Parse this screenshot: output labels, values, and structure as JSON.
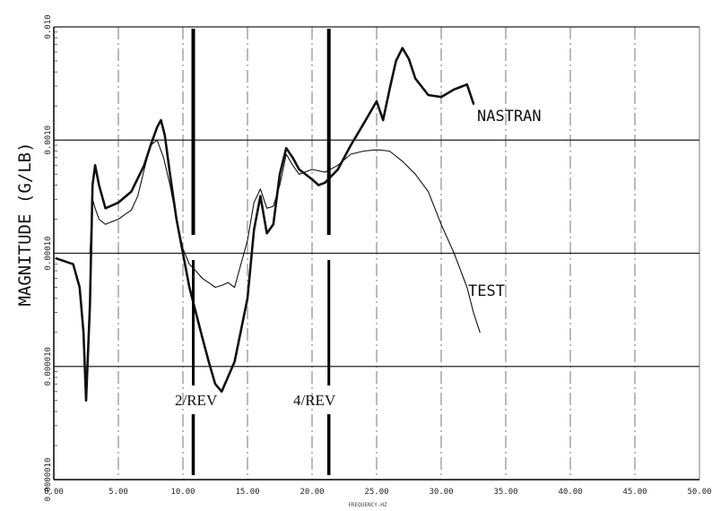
{
  "chart_data": {
    "type": "line",
    "title": "",
    "ylabel": "MAGNITUDE (G/LB)",
    "xlabel": "FREQUENCY-HZ",
    "x_ticks": [
      "0.00",
      "5.00",
      "10.00",
      "15.00",
      "20.00",
      "25.00",
      "30.00",
      "35.00",
      "40.00",
      "45.00",
      "50.00"
    ],
    "y_ticks": [
      "0.0000010",
      "0.000010",
      "0.00010",
      "0.0010",
      "0.010"
    ],
    "xlim": [
      0,
      50
    ],
    "ylim": [
      1e-06,
      0.01
    ],
    "yscale": "log",
    "grid": true,
    "series": [
      {
        "name": "NASTRAN",
        "x": [
          0.2,
          1.5,
          2.0,
          2.3,
          2.5,
          2.8,
          3.0,
          3.2,
          3.5,
          4.0,
          5.0,
          6.0,
          7.0,
          7.5,
          8.0,
          8.3,
          8.6,
          9.0,
          9.5,
          10.0,
          10.5,
          11.0,
          11.5,
          12.0,
          12.5,
          13.0,
          14.0,
          15.0,
          15.5,
          16.0,
          16.5,
          17.0,
          17.5,
          18.0,
          18.5,
          19.0,
          20.0,
          20.5,
          21.0,
          22.0,
          23.0,
          24.0,
          25.0,
          25.5,
          26.0,
          26.5,
          27.0,
          27.5,
          28.0,
          29.0,
          30.0,
          31.0,
          32.0,
          32.5
        ],
        "y": [
          9e-05,
          8e-05,
          5e-05,
          2e-05,
          5e-06,
          3.5e-05,
          0.0004,
          0.0006,
          0.0004,
          0.00025,
          0.00028,
          0.00035,
          0.0006,
          0.0009,
          0.0013,
          0.0015,
          0.0011,
          0.0005,
          0.0002,
          0.0001,
          5e-05,
          3e-05,
          1.8e-05,
          1.1e-05,
          7e-06,
          6e-06,
          1.1e-05,
          4e-05,
          0.00016,
          0.00032,
          0.00015,
          0.00018,
          0.0005,
          0.00085,
          0.0007,
          0.00055,
          0.00045,
          0.0004,
          0.00042,
          0.00055,
          0.0009,
          0.0014,
          0.0022,
          0.0015,
          0.0028,
          0.005,
          0.0065,
          0.0052,
          0.0035,
          0.0025,
          0.0024,
          0.0028,
          0.0031,
          0.0021
        ]
      },
      {
        "name": "TEST",
        "x": [
          2.8,
          3.0,
          3.2,
          3.5,
          4.0,
          4.5,
          5.0,
          5.5,
          6.0,
          6.5,
          7.0,
          7.5,
          8.0,
          8.5,
          9.0,
          9.5,
          10.0,
          10.5,
          11.0,
          11.5,
          12.0,
          12.5,
          13.0,
          13.5,
          14.0,
          15.0,
          15.5,
          16.0,
          16.5,
          17.0,
          17.5,
          18.0,
          18.5,
          19.0,
          20.0,
          21.0,
          22.0,
          23.0,
          24.0,
          25.0,
          26.0,
          27.0,
          28.0,
          29.0,
          30.0,
          31.0,
          32.0,
          32.5,
          33.0
        ],
        "y": [
          0.0001,
          0.0003,
          0.00025,
          0.0002,
          0.00018,
          0.00019,
          0.0002,
          0.00022,
          0.00024,
          0.00032,
          0.00055,
          0.0009,
          0.001,
          0.0007,
          0.0004,
          0.0002,
          0.00011,
          8e-05,
          7e-05,
          6e-05,
          5.5e-05,
          5e-05,
          5.2e-05,
          5.5e-05,
          5e-05,
          0.00013,
          0.00028,
          0.00037,
          0.00025,
          0.00026,
          0.0004,
          0.00075,
          0.0006,
          0.0005,
          0.00055,
          0.00052,
          0.0006,
          0.00075,
          0.0008,
          0.00082,
          0.0008,
          0.00065,
          0.0005,
          0.00035,
          0.00018,
          0.0001,
          5e-05,
          3e-05,
          2e-05
        ]
      }
    ],
    "annotations": [
      {
        "text": "2/REV",
        "x": 10.8
      },
      {
        "text": "4/REV",
        "x": 21.3
      }
    ],
    "series_labels": [
      {
        "text": "NASTRAN",
        "series": "NASTRAN"
      },
      {
        "text": "TEST",
        "series": "TEST"
      }
    ]
  }
}
